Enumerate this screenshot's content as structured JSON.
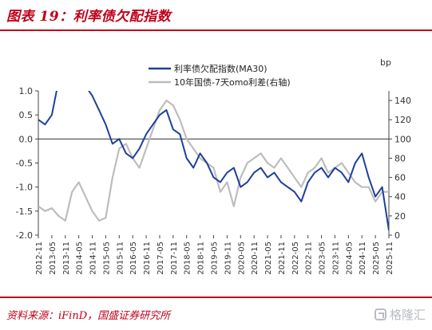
{
  "title": "图表 19：利率债欠配指数",
  "source": "资料来源：iFinD，国盛证券研究所",
  "watermark": "格隆汇",
  "colors": {
    "accent": "#c0001a",
    "series_index": "#1f3f9a",
    "series_spread": "#bdbdbd"
  },
  "chart_data": {
    "type": "line",
    "grid": false,
    "legend_position": "top-center",
    "x_tick_labels": [
      "2012-11",
      "2013-05",
      "2013-11",
      "2014-05",
      "2014-11",
      "2015-05",
      "2015-11",
      "2016-05",
      "2016-11",
      "2017-05",
      "2017-11",
      "2018-05",
      "2018-11",
      "2019-05",
      "2019-11",
      "2020-05",
      "2020-11",
      "2021-05",
      "2021-11",
      "2022-05",
      "2022-11",
      "2023-05",
      "2023-11",
      "2024-05",
      "2024-11",
      "2025-05",
      "2025-11"
    ],
    "y_left": {
      "ticks": [
        "1.0",
        "0.5",
        "0.0",
        "-0.5",
        "-1.0",
        "-1.5",
        "-2.0"
      ],
      "lim": [
        -2.0,
        1.0
      ]
    },
    "y_right": {
      "label": "bp",
      "ticks": [
        "140",
        "120",
        "100",
        "80",
        "60",
        "40",
        "20",
        "0"
      ],
      "lim": [
        0,
        150
      ]
    },
    "series": [
      {
        "name": "利率债欠配指数(MA30)",
        "axis": "left",
        "x": [
          "2012-11",
          "2013-02",
          "2013-05",
          "2013-08",
          "2013-11",
          "2014-02",
          "2014-05",
          "2014-08",
          "2014-11",
          "2015-02",
          "2015-05",
          "2015-08",
          "2015-11",
          "2016-02",
          "2016-05",
          "2016-08",
          "2016-11",
          "2017-02",
          "2017-05",
          "2017-08",
          "2017-11",
          "2018-02",
          "2018-05",
          "2018-08",
          "2018-11",
          "2019-02",
          "2019-05",
          "2019-08",
          "2019-11",
          "2020-02",
          "2020-05",
          "2020-08",
          "2020-11",
          "2021-02",
          "2021-05",
          "2021-08",
          "2021-11",
          "2022-02",
          "2022-05",
          "2022-08",
          "2022-11",
          "2023-02",
          "2023-05",
          "2023-08",
          "2023-11",
          "2024-02",
          "2024-05",
          "2024-08",
          "2024-11",
          "2025-02",
          "2025-05",
          "2025-08",
          "2025-11"
        ],
        "values": [
          0.4,
          0.3,
          0.5,
          1.2,
          1.4,
          1.3,
          1.2,
          1.1,
          0.9,
          0.6,
          0.3,
          -0.1,
          0.0,
          -0.3,
          -0.4,
          -0.2,
          0.1,
          0.3,
          0.5,
          0.6,
          0.2,
          0.1,
          -0.4,
          -0.6,
          -0.3,
          -0.5,
          -0.8,
          -0.9,
          -0.7,
          -0.6,
          -1.0,
          -0.9,
          -0.7,
          -0.6,
          -0.8,
          -0.7,
          -0.9,
          -1.0,
          -1.1,
          -1.3,
          -0.9,
          -0.7,
          -0.6,
          -0.8,
          -0.6,
          -0.7,
          -0.9,
          -0.5,
          -0.3,
          -0.8,
          -1.2,
          -1.0,
          -1.9
        ]
      },
      {
        "name": "10年国债-7天omo利差(右轴)",
        "axis": "right",
        "x": [
          "2012-11",
          "2013-02",
          "2013-05",
          "2013-08",
          "2013-11",
          "2014-02",
          "2014-05",
          "2014-08",
          "2014-11",
          "2015-02",
          "2015-05",
          "2015-08",
          "2015-11",
          "2016-02",
          "2016-05",
          "2016-08",
          "2016-11",
          "2017-02",
          "2017-05",
          "2017-08",
          "2017-11",
          "2018-02",
          "2018-05",
          "2018-08",
          "2018-11",
          "2019-02",
          "2019-05",
          "2019-08",
          "2019-11",
          "2020-02",
          "2020-05",
          "2020-08",
          "2020-11",
          "2021-02",
          "2021-05",
          "2021-08",
          "2021-11",
          "2022-02",
          "2022-05",
          "2022-08",
          "2022-11",
          "2023-02",
          "2023-05",
          "2023-08",
          "2023-11",
          "2024-02",
          "2024-05",
          "2024-08",
          "2024-11",
          "2025-02",
          "2025-05",
          "2025-08",
          "2025-11"
        ],
        "values": [
          30,
          25,
          28,
          20,
          15,
          45,
          55,
          40,
          25,
          15,
          18,
          60,
          90,
          95,
          80,
          70,
          90,
          110,
          130,
          140,
          135,
          120,
          100,
          90,
          80,
          75,
          70,
          45,
          55,
          30,
          60,
          75,
          80,
          85,
          75,
          70,
          80,
          70,
          60,
          50,
          65,
          70,
          80,
          65,
          70,
          75,
          65,
          55,
          50,
          50,
          35,
          45,
          45
        ]
      }
    ]
  }
}
